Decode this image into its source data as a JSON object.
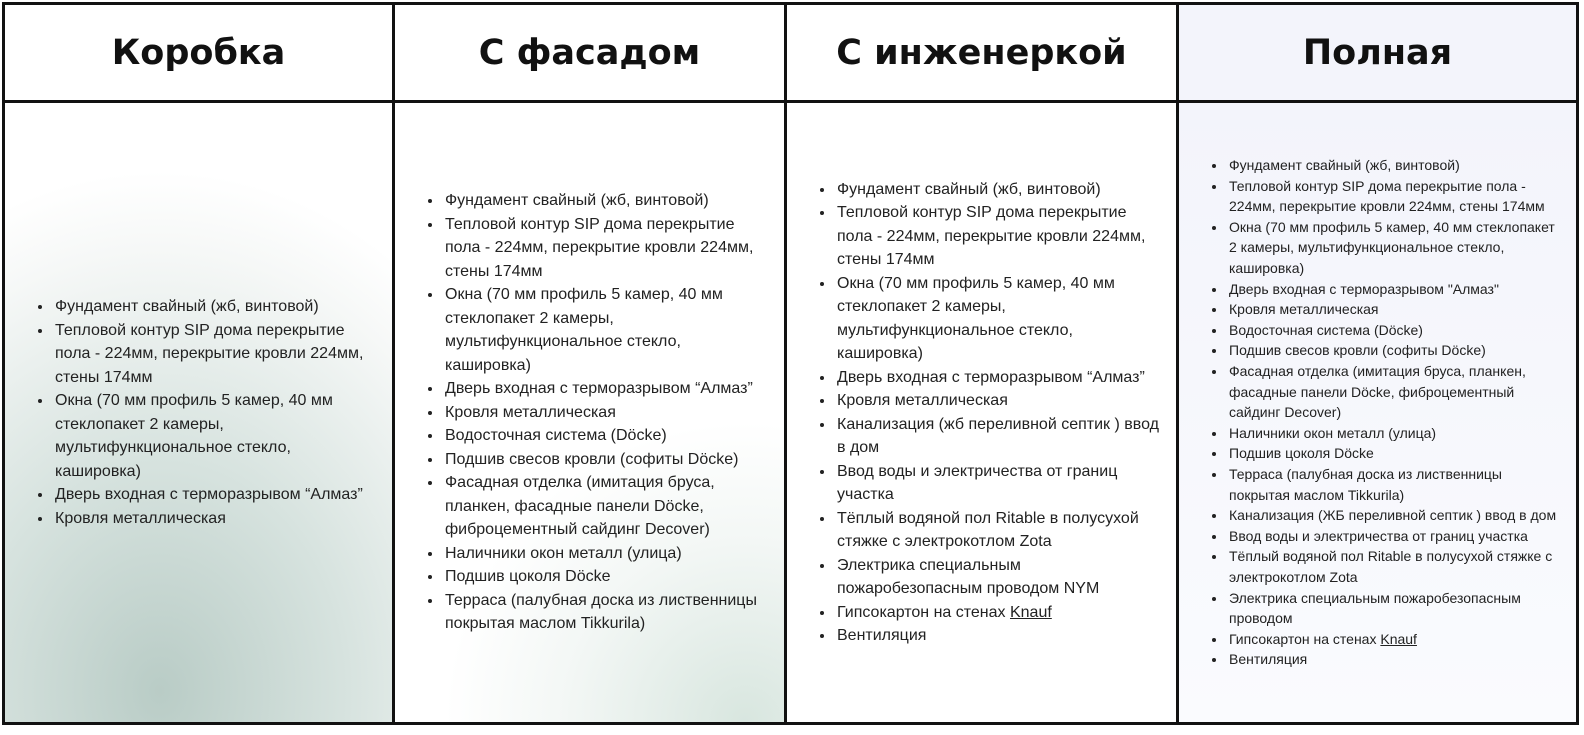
{
  "columns": [
    {
      "title": "Коробка",
      "items": [
        "Фундамент свайный (жб, винтовой)",
        "Тепловой контур SIP дома перекрытие пола - 224мм, перекрытие кровли 224мм, стены 174мм",
        "Окна (70 мм профиль 5 камер, 40 мм стеклопакет 2 камеры, мультифункциональное стекло, кашировка)",
        "Дверь входная с терморазрывом “Алмаз”",
        "Кровля металлическая"
      ]
    },
    {
      "title": "С фасадом",
      "items": [
        "Фундамент свайный (жб, винтовой)",
        "Тепловой контур SIP дома перекрытие пола - 224мм, перекрытие кровли 224мм, стены 174мм",
        "Окна (70 мм профиль 5 камер, 40 мм стеклопакет 2 камеры, мультифункциональное стекло, кашировка)",
        "Дверь входная с терморазрывом “Алмаз”",
        "Кровля металлическая",
        "Водосточная система (Döcke)",
        "Подшив свесов кровли (софиты Döcke)",
        "Фасадная отделка (имитация бруса, планкен, фасадные панели Döcke, фиброцементный сайдинг Decover)",
        "Наличники окон металл (улица)",
        "Подшив цоколя Döcke",
        "Терраса (палубная доска из лиственницы покрытая маслом Tikkurila)"
      ]
    },
    {
      "title": "С инженеркой",
      "items": [
        "Фундамент свайный (жб, винтовой)",
        "Тепловой контур SIP дома перекрытие пола - 224мм, перекрытие кровли 224мм, стены 174мм",
        "Окна (70 мм профиль 5 камер, 40 мм стеклопакет 2 камеры, мультифункциональное стекло, кашировка)",
        "Дверь входная с терморазрывом “Алмаз”",
        "Кровля металлическая",
        "Канализация (жб переливной септик ) ввод в дом",
        "Ввод воды и электричества от границ участка",
        "Тёплый водяной пол Ritable в полусухой стяжке с электрокотлом Zota",
        "Электрика специальным пожаробезопасным проводом NYM"
      ],
      "knauf_prefix": "Гипсокартон на стенах ",
      "knauf_link": "Knauf",
      "last_item": "Вентиляция"
    },
    {
      "title": "Полная",
      "items": [
        "Фундамент свайный (жб, винтовой)",
        "Тепловой контур SIP дома перекрытие пола - 224мм, перекрытие кровли 224мм, стены 174мм",
        "Окна (70 мм профиль 5 камер, 40 мм стеклопакет 2 камеры, мультифункциональное стекло, кашировка)",
        "Дверь входная с терморазрывом \"Алмаз\"",
        "Кровля металлическая",
        "Водосточная система (Döcke)",
        "Подшив свесов кровли (софиты Döcke)",
        "Фасадная отделка (имитация бруса, планкен, фасадные панели Döcke, фиброцементный сайдинг Decover)",
        "Наличники окон металл (улица)",
        "Подшив цоколя Döcke",
        "Терраса (палубная доска из лиственницы покрытая маслом Tikkurila)",
        "Канализация (ЖБ переливной септик ) ввод в дом",
        "Ввод воды и электричества от границ участка",
        "Тёплый водяной пол Ritable в полусухой стяжке с электрокотлом Zota",
        "Электрика специальным пожаробезопасным проводом"
      ],
      "knauf_prefix": "Гипсокартон на стенах ",
      "knauf_link": "Knauf",
      "last_item": "Вентиляция"
    }
  ]
}
